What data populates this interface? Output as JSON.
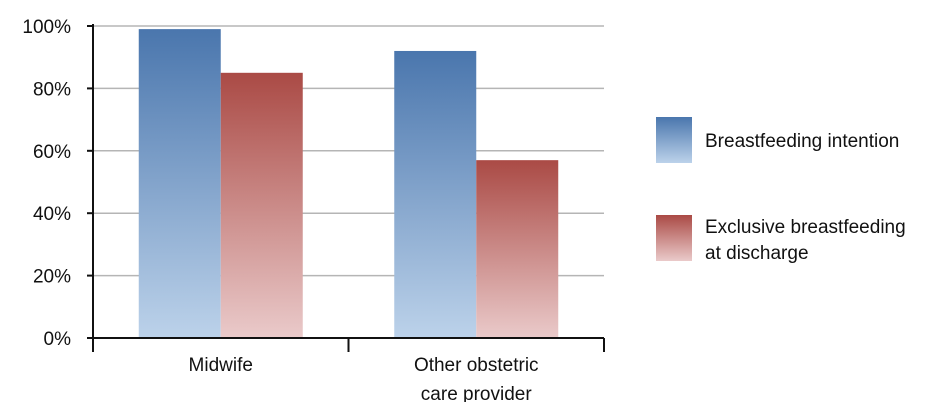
{
  "chart_data": {
    "type": "bar",
    "title": "",
    "xlabel": "",
    "ylabel": "",
    "ylim": [
      0,
      100
    ],
    "y_ticks": [
      0,
      20,
      40,
      60,
      80,
      100
    ],
    "y_tick_labels": [
      "0%",
      "20%",
      "40%",
      "60%",
      "80%",
      "100%"
    ],
    "grid": true,
    "legend_position": "right",
    "categories": [
      [
        "Midwife"
      ],
      [
        "Other obstetric",
        "care provider"
      ]
    ],
    "series": [
      {
        "name": "Breastfeeding intention",
        "values": [
          99,
          92
        ],
        "color_top": "#4a76ad",
        "color_bottom": "#bcd2ea"
      },
      {
        "name_lines": [
          "Exclusive breastfeeding",
          "at discharge"
        ],
        "values": [
          85,
          57
        ],
        "color_top": "#aa4a45",
        "color_bottom": "#eacaca"
      }
    ]
  }
}
